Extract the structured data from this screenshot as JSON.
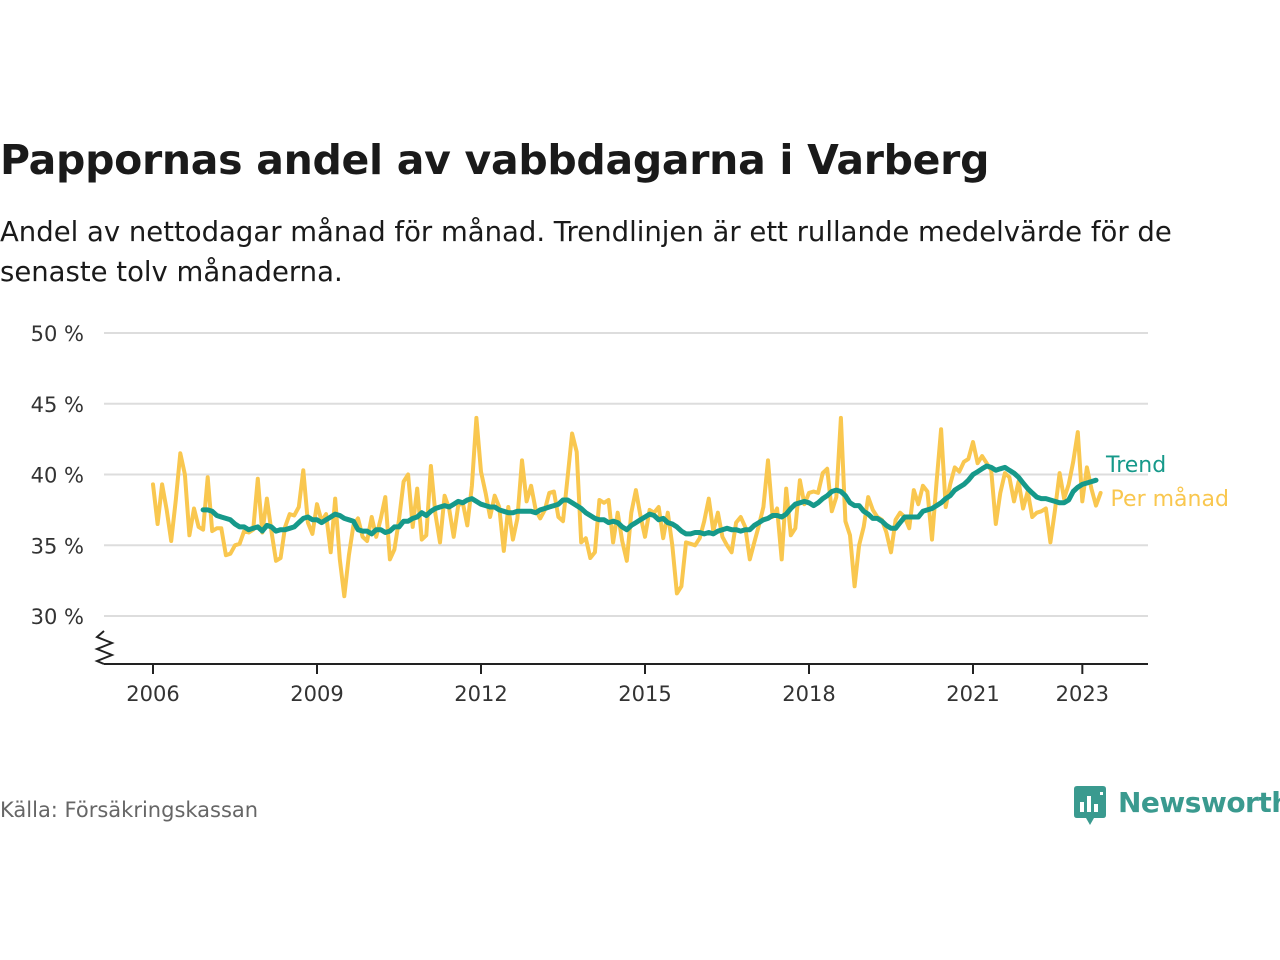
{
  "header": {
    "title": "Pappornas andel av vabbdagarna i Varberg",
    "subtitle": "Andel av nettodagar månad för månad. Trendlinjen är ett rullande medelvärde för de senaste tolv månaderna."
  },
  "footer": {
    "source": "Källa: Försäkringskassan",
    "brand": "Newsworthy"
  },
  "colors": {
    "monthly": "#f9c74f",
    "trend": "#16998a",
    "grid": "#dddddd",
    "axis": "#222222",
    "brand": "#3a9a8f"
  },
  "icons": {
    "logo": "bar-chart-speech-icon",
    "axis_break": "zigzag-break-icon"
  },
  "chart_data": {
    "type": "line",
    "ylim": [
      27,
      50
    ],
    "xlim": [
      2005.9,
      2023.9
    ],
    "grid": "horizontal",
    "legend": "inline-right",
    "y_ticks": [
      30,
      35,
      40,
      45,
      50
    ],
    "y_tick_labels": [
      "30 %",
      "35 %",
      "40 %",
      "45 %",
      "50 %"
    ],
    "x_ticks": [
      2006,
      2009,
      2012,
      2015,
      2018,
      2021,
      2023
    ],
    "x_tick_labels": [
      "2006",
      "2009",
      "2012",
      "2015",
      "2018",
      "2021",
      "2023"
    ],
    "series": [
      {
        "name": "Per månad",
        "color": "#f9c74f",
        "start": 2006.0,
        "step": 0.0833333,
        "values": [
          39.3,
          36.5,
          39.3,
          37.5,
          35.3,
          38.2,
          41.5,
          40.0,
          35.7,
          37.6,
          36.3,
          36.1,
          39.8,
          36.0,
          36.2,
          36.2,
          34.3,
          34.4,
          35.0,
          35.1,
          36.0,
          35.9,
          36.1,
          39.7,
          35.9,
          38.3,
          36.0,
          33.9,
          34.1,
          36.3,
          37.2,
          37.1,
          37.7,
          40.3,
          36.6,
          35.8,
          37.9,
          36.7,
          37.2,
          34.5,
          38.3,
          34.0,
          31.4,
          34.3,
          36.4,
          36.9,
          35.6,
          35.3,
          37.0,
          35.6,
          36.9,
          38.4,
          34.0,
          34.7,
          36.8,
          39.5,
          40.0,
          36.3,
          39.0,
          35.4,
          35.7,
          40.6,
          37.2,
          35.2,
          38.5,
          37.6,
          35.6,
          37.8,
          38.0,
          36.4,
          39.2,
          44.0,
          40.2,
          38.7,
          37.0,
          38.5,
          37.7,
          34.6,
          37.7,
          35.4,
          36.9,
          41.0,
          38.1,
          39.2,
          37.5,
          36.9,
          37.5,
          38.7,
          38.8,
          37.0,
          36.7,
          39.8,
          42.9,
          41.6,
          35.2,
          35.5,
          34.1,
          34.5,
          38.2,
          38.0,
          38.2,
          35.2,
          37.3,
          35.3,
          33.9,
          37.3,
          38.9,
          37.1,
          35.6,
          37.5,
          37.3,
          37.7,
          35.5,
          37.3,
          35.0,
          31.6,
          32.1,
          35.2,
          35.1,
          35.0,
          35.5,
          36.7,
          38.3,
          36.0,
          37.3,
          35.6,
          35.0,
          34.5,
          36.6,
          37.0,
          36.3,
          34.0,
          35.2,
          36.4,
          37.7,
          41.0,
          37.0,
          37.6,
          34.0,
          39.0,
          35.7,
          36.2,
          39.6,
          37.9,
          38.7,
          38.8,
          38.7,
          40.1,
          40.4,
          37.4,
          38.4,
          44.0,
          36.7,
          35.7,
          32.1,
          35.0,
          36.3,
          38.4,
          37.5,
          37.0,
          36.8,
          35.9,
          34.5,
          36.8,
          37.3,
          37.0,
          36.2,
          38.9,
          37.9,
          39.2,
          38.8,
          35.4,
          39.5,
          43.2,
          37.7,
          39.3,
          40.5,
          40.2,
          40.9,
          41.1,
          42.3,
          40.8,
          41.3,
          40.8,
          40.3,
          36.5,
          38.7,
          40.1,
          39.8,
          38.1,
          39.5,
          37.6,
          38.8,
          37.0,
          37.3,
          37.4,
          37.6,
          35.2,
          37.5,
          40.1,
          38.3,
          39.3,
          40.9,
          43.0,
          38.1,
          40.5,
          39.0,
          37.8,
          38.7
        ]
      },
      {
        "name": "Trend",
        "color": "#16998a",
        "start": 2006.9167,
        "step": 0.0833333,
        "values": [
          37.5,
          37.5,
          37.4,
          37.1,
          37.0,
          36.9,
          36.8,
          36.5,
          36.3,
          36.3,
          36.1,
          36.2,
          36.3,
          36.0,
          36.4,
          36.3,
          36.0,
          36.1,
          36.1,
          36.2,
          36.3,
          36.6,
          36.9,
          37.0,
          36.8,
          36.8,
          36.6,
          36.8,
          37.0,
          37.2,
          37.1,
          36.9,
          36.8,
          36.7,
          36.1,
          36.0,
          36.0,
          35.8,
          36.1,
          36.1,
          35.9,
          36.0,
          36.3,
          36.3,
          36.7,
          36.7,
          36.9,
          37.0,
          37.3,
          37.1,
          37.4,
          37.6,
          37.7,
          37.8,
          37.7,
          37.9,
          38.1,
          38.0,
          38.2,
          38.3,
          38.1,
          37.9,
          37.8,
          37.7,
          37.7,
          37.5,
          37.4,
          37.3,
          37.3,
          37.4,
          37.4,
          37.4,
          37.4,
          37.3,
          37.5,
          37.6,
          37.7,
          37.8,
          37.9,
          38.2,
          38.2,
          38.0,
          37.8,
          37.6,
          37.3,
          37.1,
          36.9,
          36.8,
          36.8,
          36.6,
          36.7,
          36.6,
          36.3,
          36.1,
          36.4,
          36.6,
          36.8,
          37.0,
          37.2,
          37.1,
          36.8,
          36.9,
          36.6,
          36.5,
          36.3,
          36.0,
          35.8,
          35.8,
          35.9,
          35.9,
          35.8,
          35.9,
          35.8,
          36.0,
          36.1,
          36.2,
          36.1,
          36.1,
          36.0,
          36.1,
          36.1,
          36.4,
          36.6,
          36.8,
          36.9,
          37.1,
          37.1,
          37.0,
          37.2,
          37.6,
          37.9,
          38.0,
          38.1,
          38.0,
          37.8,
          38.0,
          38.3,
          38.5,
          38.8,
          38.9,
          38.8,
          38.5,
          38.0,
          37.8,
          37.8,
          37.4,
          37.2,
          36.9,
          36.9,
          36.7,
          36.4,
          36.2,
          36.2,
          36.6,
          37.0,
          37.0,
          37.0,
          37.0,
          37.4,
          37.5,
          37.6,
          37.8,
          38.0,
          38.3,
          38.5,
          38.9,
          39.1,
          39.3,
          39.6,
          40.0,
          40.2,
          40.4,
          40.6,
          40.5,
          40.3,
          40.4,
          40.5,
          40.3,
          40.1,
          39.8,
          39.4,
          39.0,
          38.7,
          38.4,
          38.3,
          38.3,
          38.2,
          38.1,
          38.0,
          38.0,
          38.2,
          38.8,
          39.1,
          39.3,
          39.4,
          39.5,
          39.6
        ]
      }
    ]
  }
}
